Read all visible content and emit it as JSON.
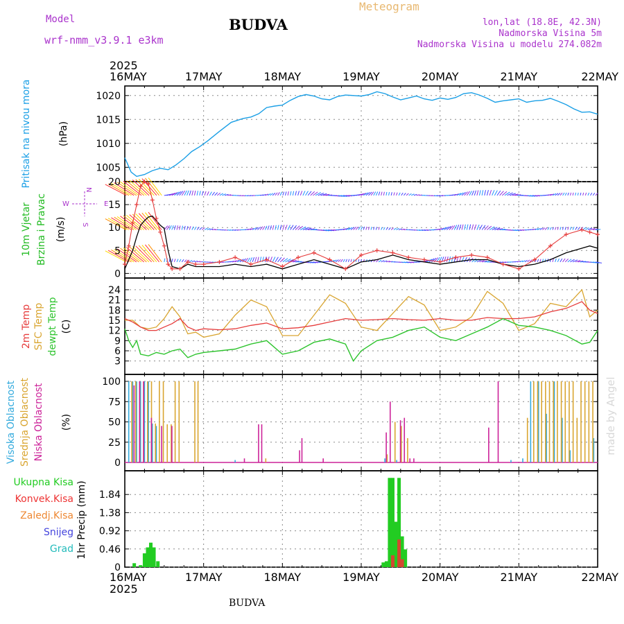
{
  "header": {
    "model_label": "Model",
    "model_name": "wrf-nmm_v3.9.1 e3km",
    "station": "BUDVA",
    "chart_title": "Meteogram",
    "lonlat": "lon,lat (18.8E, 42.3N)",
    "altitude": "Nadmorska Visina 5m",
    "model_altitude": "Nadmorska Visina u modelu 274.082m",
    "footer_station": "BUDVA",
    "watermark": "made by Angel",
    "year": "2025"
  },
  "colors": {
    "pressure": "#1a9fe6",
    "t2m": "#e63c3c",
    "sfc": "#d9a530",
    "dewpt": "#2ec42e",
    "high": "#33aadd",
    "mid": "#d9a530",
    "low": "#cc2299",
    "precip": "#22cc22",
    "conv": "#ee3333",
    "frz": "#ee8833",
    "snow": "#4444dd",
    "hail": "#22bbbb",
    "windlab": "#22bb22",
    "vanelab": "#aa33cc",
    "grid": "#888888"
  },
  "chart_data": [
    {
      "id": "pressure",
      "type": "line",
      "title": "Pritisak na nivou mora",
      "ylabel": "(hPa)",
      "ylim": [
        1002,
        1022
      ],
      "yticks": [
        1005,
        1010,
        1015,
        1020
      ],
      "x_range_days": [
        0,
        6
      ],
      "x_labels": [
        "16MAY",
        "17MAY",
        "18MAY",
        "19MAY",
        "20MAY",
        "21MAY",
        "22MAY"
      ],
      "series": [
        {
          "name": "MSLP",
          "x": [
            0,
            0.08,
            0.15,
            0.25,
            0.35,
            0.45,
            0.55,
            0.65,
            0.75,
            0.85,
            0.95,
            1.05,
            1.2,
            1.35,
            1.5,
            1.6,
            1.7,
            1.8,
            1.9,
            2.0,
            2.1,
            2.2,
            2.3,
            2.4,
            2.5,
            2.6,
            2.7,
            2.8,
            2.9,
            3.0,
            3.1,
            3.2,
            3.3,
            3.4,
            3.5,
            3.6,
            3.7,
            3.8,
            3.9,
            4.0,
            4.1,
            4.2,
            4.3,
            4.4,
            4.5,
            4.6,
            4.7,
            4.8,
            4.9,
            5.0,
            5.1,
            5.2,
            5.3,
            5.4,
            5.5,
            5.6,
            5.7,
            5.8,
            5.9,
            6.0
          ],
          "values": [
            1007,
            1004,
            1003.1,
            1003.5,
            1004.3,
            1004.8,
            1004.5,
            1005.5,
            1006.8,
            1008.3,
            1009.3,
            1010.5,
            1012.5,
            1014.4,
            1015.2,
            1015.5,
            1016.2,
            1017.5,
            1017.8,
            1018,
            1019,
            1019.8,
            1020.2,
            1019.9,
            1019.3,
            1019.1,
            1019.8,
            1020.1,
            1020,
            1019.9,
            1020.2,
            1020.8,
            1020.4,
            1019.7,
            1019.1,
            1019.5,
            1019.9,
            1019.3,
            1019,
            1019.5,
            1019.2,
            1019.6,
            1020.4,
            1020.6,
            1020.1,
            1019.4,
            1018.6,
            1018.9,
            1019.1,
            1019.3,
            1018.6,
            1018.9,
            1019,
            1019.4,
            1018.8,
            1018.1,
            1017.2,
            1016.5,
            1016.6,
            1016.1
          ]
        }
      ]
    },
    {
      "id": "wind",
      "type": "line",
      "title": "10m Vjetar Brzina i Pravac",
      "ylabel": "(m/s)",
      "ylim": [
        -1,
        20
      ],
      "yticks": [
        0,
        5,
        10,
        15,
        20
      ],
      "compass": {
        "n": "N",
        "w": "W",
        "e": "E",
        "s": "S"
      },
      "series": [
        {
          "name": "speed",
          "x": [
            0,
            0.05,
            0.1,
            0.15,
            0.2,
            0.25,
            0.3,
            0.35,
            0.4,
            0.45,
            0.5,
            0.55,
            0.6,
            0.7,
            0.8,
            0.9,
            1.0,
            1.2,
            1.4,
            1.6,
            1.8,
            2.0,
            2.2,
            2.4,
            2.6,
            2.8,
            3.0,
            3.2,
            3.4,
            3.6,
            3.8,
            4.0,
            4.2,
            4.4,
            4.6,
            4.8,
            5.0,
            5.2,
            5.4,
            5.6,
            5.8,
            5.9,
            6.0
          ],
          "values": [
            1,
            3,
            5,
            8,
            10.5,
            11.5,
            12.3,
            12.5,
            11.5,
            10.5,
            9.8,
            5,
            1.5,
            1,
            2,
            1.5,
            1.5,
            1.5,
            2,
            1.5,
            2,
            1,
            2,
            3,
            2,
            1,
            2.5,
            3,
            4,
            3,
            2.5,
            2,
            2.5,
            3,
            3,
            2,
            1.5,
            2,
            3,
            4.5,
            5.5,
            6,
            5.5
          ]
        },
        {
          "name": "gust",
          "x": [
            0,
            0.05,
            0.1,
            0.15,
            0.2,
            0.25,
            0.3,
            0.35,
            0.4,
            0.45,
            0.5,
            0.55,
            0.6,
            0.7,
            0.8,
            0.9,
            1.0,
            1.2,
            1.4,
            1.6,
            1.8,
            2.0,
            2.2,
            2.4,
            2.6,
            2.8,
            3.0,
            3.2,
            3.4,
            3.6,
            3.8,
            4.0,
            4.2,
            4.4,
            4.6,
            4.8,
            5.0,
            5.2,
            5.4,
            5.6,
            5.8,
            5.9,
            6.0
          ],
          "values": [
            2,
            6,
            11,
            15,
            19,
            20,
            19.5,
            16,
            12,
            9,
            6,
            2,
            1,
            1,
            2.5,
            2,
            2,
            2.5,
            3.5,
            2,
            3,
            1.5,
            3.5,
            4.5,
            3,
            1,
            4,
            5,
            4.5,
            3.5,
            3,
            2.5,
            3.5,
            4,
            3.5,
            2,
            1,
            3,
            6,
            8.5,
            9.5,
            9,
            8.5
          ]
        }
      ],
      "barb_rows": [
        17,
        9.5,
        2.5
      ]
    },
    {
      "id": "temperature",
      "type": "line",
      "title": "2m Temp / SFC Temp / dewpt Temp",
      "labels": [
        "2m Temp",
        "SFC Temp",
        "dewpt Temp"
      ],
      "ylabel": "(C)",
      "ylim": [
        1.5,
        25
      ],
      "yticks": [
        3,
        6,
        9,
        12,
        15,
        18,
        21,
        24
      ],
      "series": [
        {
          "name": "2m Temp",
          "x": [
            0,
            0.1,
            0.2,
            0.3,
            0.4,
            0.5,
            0.6,
            0.7,
            0.8,
            0.9,
            1.0,
            1.2,
            1.4,
            1.6,
            1.8,
            2.0,
            2.2,
            2.4,
            2.6,
            2.8,
            3.0,
            3.2,
            3.4,
            3.6,
            3.8,
            4.0,
            4.2,
            4.4,
            4.6,
            4.8,
            5.0,
            5.2,
            5.4,
            5.6,
            5.8,
            5.9,
            6.0
          ],
          "values": [
            15.5,
            14.5,
            13,
            12,
            12,
            13,
            14,
            15.5,
            13,
            12,
            12.5,
            12.2,
            12.5,
            13.5,
            14.2,
            12.5,
            12.8,
            13.5,
            14.5,
            15.5,
            15,
            15.2,
            15.5,
            15.2,
            15,
            15.5,
            15,
            15,
            15.8,
            15.5,
            15.5,
            16,
            17.5,
            18.5,
            20.5,
            18,
            17
          ]
        },
        {
          "name": "SFC Temp",
          "x": [
            0,
            0.1,
            0.2,
            0.3,
            0.4,
            0.5,
            0.6,
            0.7,
            0.8,
            0.9,
            1.0,
            1.2,
            1.4,
            1.6,
            1.8,
            2.0,
            2.2,
            2.4,
            2.6,
            2.8,
            3.0,
            3.2,
            3.4,
            3.6,
            3.8,
            4.0,
            4.2,
            4.4,
            4.6,
            4.8,
            5.0,
            5.2,
            5.4,
            5.6,
            5.8,
            5.9,
            6.0
          ],
          "values": [
            15,
            15,
            13,
            12.5,
            13,
            15.5,
            19,
            16,
            11,
            11.5,
            10,
            11,
            16.5,
            21,
            19,
            10.5,
            10.5,
            16.5,
            22.5,
            20,
            13,
            12,
            17,
            22,
            19.5,
            12,
            13,
            16,
            23.5,
            20,
            12,
            14,
            20,
            19,
            24,
            16,
            18
          ]
        },
        {
          "name": "dewpt Temp",
          "x": [
            0,
            0.05,
            0.1,
            0.15,
            0.2,
            0.3,
            0.4,
            0.5,
            0.6,
            0.7,
            0.8,
            0.9,
            1.0,
            1.2,
            1.4,
            1.6,
            1.8,
            2.0,
            2.2,
            2.4,
            2.6,
            2.8,
            2.9,
            3.0,
            3.2,
            3.4,
            3.6,
            3.8,
            4.0,
            4.2,
            4.4,
            4.6,
            4.8,
            5.0,
            5.2,
            5.4,
            5.6,
            5.8,
            5.9,
            6.0
          ],
          "values": [
            12.5,
            9,
            7,
            9,
            5,
            4.5,
            5.5,
            5,
            6,
            6.5,
            4,
            5,
            5.5,
            6,
            6.5,
            8,
            9,
            5,
            6,
            8.5,
            9.5,
            8,
            3,
            6,
            9,
            10,
            12,
            13,
            10,
            9,
            11,
            13,
            15.5,
            13.5,
            13,
            12,
            10.5,
            8,
            8.5,
            12
          ]
        }
      ]
    },
    {
      "id": "clouds",
      "type": "bar",
      "labels": [
        "Visoka Oblacnost",
        "Srednja Oblacnost",
        "Niska Oblacnost"
      ],
      "ylabel": "(%)",
      "ylim": [
        0,
        100
      ],
      "yticks": [
        0,
        25,
        50,
        75,
        100
      ],
      "high": {
        "x": [
          0.05,
          0.1,
          0.15,
          0.2,
          0.25,
          0.3,
          0.35,
          0.4,
          1.4,
          3.3,
          3.45,
          4.9,
          5.05,
          5.15,
          5.25,
          5.35,
          5.45,
          5.55,
          5.65,
          5.95
        ],
        "values": [
          100,
          100,
          100,
          100,
          100,
          100,
          48,
          45,
          3,
          5,
          3,
          3,
          5,
          100,
          100,
          60,
          100,
          55,
          15,
          30
        ]
      },
      "mid": {
        "x": [
          0.08,
          0.13,
          0.18,
          0.23,
          0.28,
          0.33,
          0.38,
          0.43,
          0.48,
          0.53,
          0.58,
          0.63,
          0.68,
          0.88,
          0.92,
          1.78,
          3.32,
          3.42,
          3.5,
          3.58,
          5.1,
          5.18,
          5.23,
          5.28,
          5.33,
          5.38,
          5.43,
          5.48,
          5.53,
          5.58,
          5.63,
          5.68,
          5.73,
          5.78,
          5.83,
          5.88,
          5.93
        ],
        "values": [
          100,
          100,
          100,
          100,
          100,
          100,
          48,
          100,
          100,
          47,
          47,
          100,
          100,
          100,
          100,
          5,
          10,
          50,
          45,
          30,
          55,
          100,
          100,
          100,
          100,
          100,
          100,
          100,
          100,
          100,
          100,
          100,
          55,
          100,
          100,
          100,
          100
        ]
      },
      "low": {
        "x": [
          0.1,
          0.17,
          0.22,
          0.32,
          0.45,
          0.58,
          1.5,
          1.68,
          1.72,
          2.2,
          2.23,
          2.5,
          3.3,
          3.35,
          3.48,
          3.53,
          3.6,
          3.65,
          4.6,
          4.72
        ],
        "values": [
          95,
          100,
          100,
          55,
          45,
          45,
          5,
          47,
          47,
          15,
          30,
          5,
          37,
          75,
          52,
          55,
          5,
          5,
          43,
          100
        ]
      }
    },
    {
      "id": "precip",
      "type": "bar",
      "labels": [
        "Ukupna Kisa",
        "Konvek.Kisa",
        "Zaledj.Kisa",
        "Snijeg",
        "Grad"
      ],
      "ylabel": "1hr Precip (mm)",
      "ylim": [
        0,
        2.3
      ],
      "yticks": [
        0,
        0.46,
        0.92,
        1.38,
        1.84
      ],
      "ytick_labels": [
        "0",
        "0.46",
        "0.92",
        "1.38",
        "1.84"
      ],
      "total": {
        "x": [
          0.12,
          0.2,
          0.25,
          0.29,
          0.33,
          0.37,
          0.42,
          3.28,
          3.32,
          3.36,
          3.4,
          3.44,
          3.48,
          3.52,
          3.56
        ],
        "values": [
          0.1,
          0.05,
          0.35,
          0.5,
          0.62,
          0.5,
          0.15,
          0.12,
          0.15,
          2.26,
          2.26,
          1.15,
          2.26,
          0.78,
          0.45
        ]
      },
      "conv": {
        "x": [
          3.4,
          3.48,
          3.52
        ],
        "values": [
          0.3,
          0.7,
          0.2
        ]
      }
    }
  ]
}
